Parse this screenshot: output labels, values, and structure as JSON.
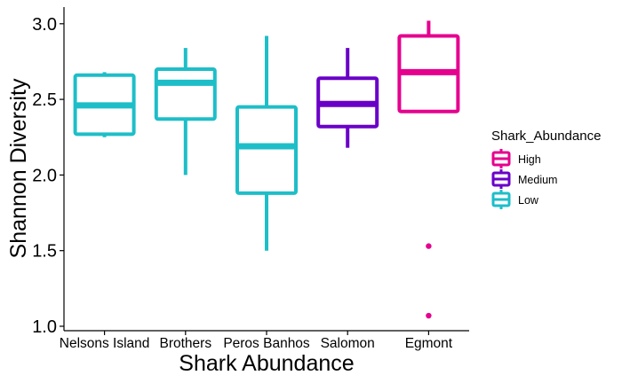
{
  "chart_data": {
    "type": "boxplot",
    "xlabel": "Shark Abundance",
    "ylabel": "Shannon Diversity",
    "ylim": [
      0.98,
      3.1
    ],
    "y_ticks": [
      "1.0",
      "1.5",
      "2.0",
      "2.5",
      "3.0"
    ],
    "categories": [
      "Nelsons Island",
      "Brothers",
      "Peros Banhos",
      "Salomon",
      "Egmont"
    ],
    "legend": {
      "title": "Shark_Abundance",
      "placement": "right",
      "entries": [
        {
          "label": "High",
          "color": "#E5008E"
        },
        {
          "label": "Medium",
          "color": "#6A00C8"
        },
        {
          "label": "Low",
          "color": "#1DBEC8"
        }
      ]
    },
    "boxes": [
      {
        "category": "Nelsons Island",
        "group": "Low",
        "whisker_low": 2.25,
        "q1": 2.27,
        "median": 2.46,
        "q3": 2.66,
        "whisker_high": 2.68,
        "outliers": []
      },
      {
        "category": "Brothers",
        "group": "Low",
        "whisker_low": 2.0,
        "q1": 2.37,
        "median": 2.61,
        "q3": 2.7,
        "whisker_high": 2.84,
        "outliers": []
      },
      {
        "category": "Peros Banhos",
        "group": "Low",
        "whisker_low": 1.5,
        "q1": 1.88,
        "median": 2.19,
        "q3": 2.45,
        "whisker_high": 2.92,
        "outliers": []
      },
      {
        "category": "Salomon",
        "group": "Medium",
        "whisker_low": 2.18,
        "q1": 2.32,
        "median": 2.47,
        "q3": 2.64,
        "whisker_high": 2.84,
        "outliers": []
      },
      {
        "category": "Egmont",
        "group": "High",
        "whisker_low": 2.41,
        "q1": 2.42,
        "median": 2.68,
        "q3": 2.92,
        "whisker_high": 3.02,
        "outliers": [
          1.53,
          1.07
        ]
      }
    ]
  }
}
